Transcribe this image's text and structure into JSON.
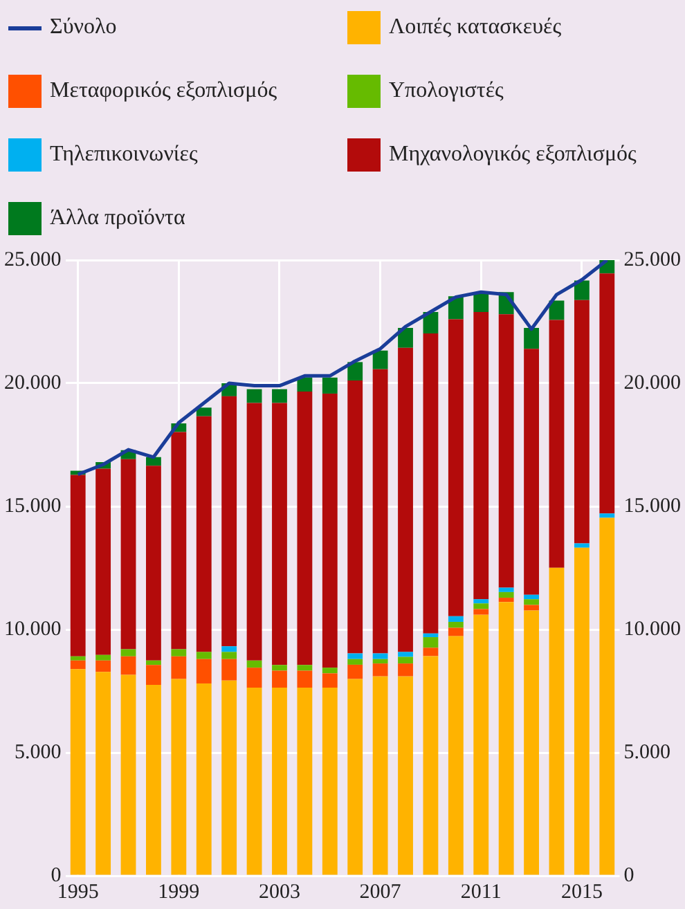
{
  "chart_data": {
    "type": "bar",
    "stacked": true,
    "legend": "top",
    "grid": true,
    "categories": [
      "1995",
      null,
      null,
      null,
      "1999",
      null,
      null,
      null,
      "2003",
      null,
      null,
      null,
      "2007",
      null,
      null,
      null,
      "2011",
      null,
      null,
      null,
      "2015",
      null
    ],
    "series": [
      {
        "name": "Σύνολο",
        "type": "line",
        "color": "#1a3d99",
        "values": [
          16300,
          16700,
          17300,
          17000,
          18400,
          19200,
          20000,
          19900,
          19900,
          20300,
          20300,
          20900,
          21400,
          22300,
          22900,
          23500,
          23700,
          23600,
          22200,
          23600,
          24200,
          25000
        ]
      },
      {
        "name": "Λοιπές κατασκευές",
        "color": "#ffb300",
        "values": [
          8390,
          8280,
          8160,
          7750,
          7990,
          7810,
          7930,
          7640,
          7640,
          7640,
          7640,
          7990,
          8100,
          8100,
          8920,
          9730,
          10600,
          11120,
          10770,
          12510,
          13320,
          14540
        ]
      },
      {
        "name": "Μεταφορικός εξοπλισμός",
        "color": "#ff5000",
        "values": [
          350,
          460,
          750,
          810,
          920,
          990,
          870,
          810,
          690,
          690,
          580,
          580,
          520,
          520,
          340,
          340,
          230,
          170,
          230,
          0,
          0,
          0
        ]
      },
      {
        "name": "Υπολογιστές",
        "color": "#66bb00",
        "values": [
          170,
          230,
          290,
          180,
          290,
          290,
          290,
          290,
          230,
          230,
          230,
          230,
          180,
          270,
          430,
          240,
          230,
          230,
          230,
          0,
          0,
          0
        ]
      },
      {
        "name": "Τηλεπικοινωνίες",
        "color": "#00b0f0",
        "values": [
          0,
          0,
          0,
          0,
          0,
          0,
          230,
          0,
          0,
          0,
          0,
          230,
          230,
          200,
          150,
          230,
          170,
          180,
          180,
          0,
          180,
          170
        ]
      },
      {
        "name": "Μηχανολογικός εξοπλισμός",
        "color": "#b30b0b",
        "values": [
          7370,
          7560,
          7720,
          7910,
          8820,
          9570,
          10150,
          10460,
          10640,
          11100,
          11130,
          11080,
          11540,
          12350,
          12180,
          12060,
          11660,
          11100,
          9990,
          10060,
          9880,
          9750
        ]
      },
      {
        "name": "Άλλα προϊόντα",
        "color": "#007a1e",
        "values": [
          170,
          270,
          360,
          350,
          350,
          350,
          530,
          560,
          560,
          580,
          650,
          750,
          760,
          810,
          870,
          930,
          810,
          900,
          850,
          790,
          790,
          540
        ]
      }
    ],
    "ylim": [
      0,
      25000
    ],
    "yticks": [
      {
        "value": 0,
        "label": "0"
      },
      {
        "value": 5000,
        "label": "5.000"
      },
      {
        "value": 10000,
        "label": "10.000"
      },
      {
        "value": 15000,
        "label": "15.000"
      },
      {
        "value": 20000,
        "label": "20.000"
      },
      {
        "value": 25000,
        "label": "25.000"
      }
    ],
    "y2lim": [
      0,
      25000
    ],
    "y2ticks": [
      {
        "value": 0,
        "label": "0"
      },
      {
        "value": 5000,
        "label": "5.000"
      },
      {
        "value": 10000,
        "label": "10.000"
      },
      {
        "value": 15000,
        "label": "15.000"
      },
      {
        "value": 20000,
        "label": "20.000"
      },
      {
        "value": 25000,
        "label": "25.000"
      }
    ]
  }
}
